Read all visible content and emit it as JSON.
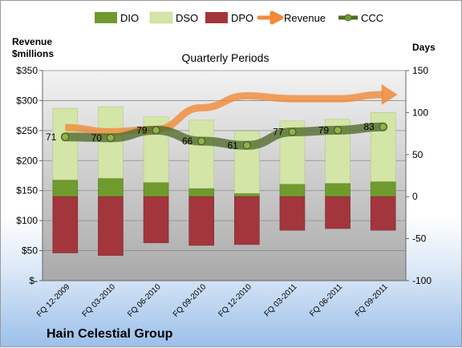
{
  "chart_data": {
    "type": "bar",
    "title": "Quarterly Periods",
    "company": "Hain Celestial Group",
    "y_left_label": [
      "Revenue",
      "$millions"
    ],
    "y_right_label": "Days",
    "y_left_range": [
      0,
      350
    ],
    "y_right_range": [
      -100,
      150
    ],
    "y_left_ticks": [
      "$-",
      "$50",
      "$100",
      "$150",
      "$200",
      "$250",
      "$300",
      "$350"
    ],
    "y_right_ticks": [
      "-100",
      "-50",
      "0",
      "50",
      "100",
      "150"
    ],
    "categories": [
      "FQ 12-2009",
      "FQ 03-2010",
      "FQ 06-2010",
      "FQ 09-2010",
      "FQ 12-2010",
      "FQ 03-2011",
      "FQ 06-2011",
      "FQ 09-2011"
    ],
    "series": [
      {
        "name": "DIO",
        "axis": "days",
        "values": [
          20,
          22,
          17,
          10,
          4,
          15,
          16,
          18
        ]
      },
      {
        "name": "DSO",
        "axis": "days",
        "values": [
          85,
          85,
          78,
          81,
          74,
          75,
          76,
          82
        ]
      },
      {
        "name": "DPO",
        "axis": "days",
        "values": [
          -67,
          -70,
          -55,
          -58,
          -57,
          -40,
          -38,
          -40
        ]
      },
      {
        "name": "Revenue",
        "axis": "revenue",
        "values": [
          255,
          248,
          252,
          288,
          308,
          303,
          303,
          310
        ]
      },
      {
        "name": "CCC",
        "axis": "days",
        "values": [
          71,
          70,
          79,
          66,
          61,
          77,
          79,
          83
        ]
      }
    ],
    "ccc_labels": [
      "71",
      "70",
      "79",
      "66",
      "61",
      "77",
      "79",
      "83"
    ],
    "legend_position": "top",
    "grid": true
  },
  "colors": {
    "dio": "#6f9a2e",
    "dso": "#d4e5a8",
    "dpo": "#a2363c",
    "revenue": "#f08a3a",
    "ccc": "#4f6a2a",
    "plot_bg": "#c9c9c9"
  }
}
